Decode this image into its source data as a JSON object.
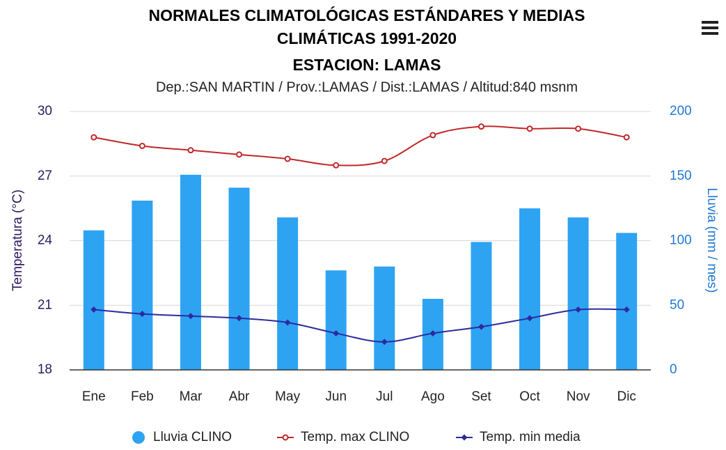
{
  "chart_data": {
    "type": "bar-line",
    "title": [
      "NORMALES CLIMATOLÓGICAS ESTÁNDARES Y MEDIAS",
      "CLIMÁTICAS 1991-2020",
      "ESTACION: LAMAS"
    ],
    "subtitle": "Dep.:SAN MARTIN / Prov.:LAMAS / Dist.:LAMAS / Altitud:840 msnm",
    "y_label": "Temperatura (°C)",
    "y2_label": "Lluvia (mm / mes)",
    "categories": [
      "Ene",
      "Feb",
      "Mar",
      "Abr",
      "May",
      "Jun",
      "Jul",
      "Ago",
      "Set",
      "Oct",
      "Nov",
      "Dic"
    ],
    "series": [
      {
        "name": "Lluvia CLINO",
        "type": "bar",
        "axis": "y2",
        "color": "#2ea3f2",
        "values": [
          108,
          131,
          151,
          141,
          118,
          77,
          80,
          55,
          99,
          125,
          118,
          106
        ]
      },
      {
        "name": "Temp. max CLINO",
        "type": "line",
        "color": "#c0282a",
        "values": [
          28.8,
          28.4,
          28.2,
          28.0,
          27.8,
          27.5,
          27.7,
          28.9,
          29.3,
          29.2,
          29.2,
          28.8
        ]
      },
      {
        "name": "Temp. min media",
        "type": "line",
        "color": "#2b2ba0",
        "values": [
          20.8,
          20.6,
          20.5,
          20.4,
          20.2,
          19.7,
          19.3,
          19.7,
          20.0,
          20.4,
          20.8,
          20.8
        ]
      }
    ],
    "ylim": [
      18,
      30
    ],
    "yticks": [
      18,
      21,
      24,
      27,
      30
    ],
    "y2lim": [
      0,
      200
    ],
    "y2ticks": [
      0,
      50,
      100,
      150,
      200
    ],
    "grid": true,
    "legend": "bottom"
  }
}
